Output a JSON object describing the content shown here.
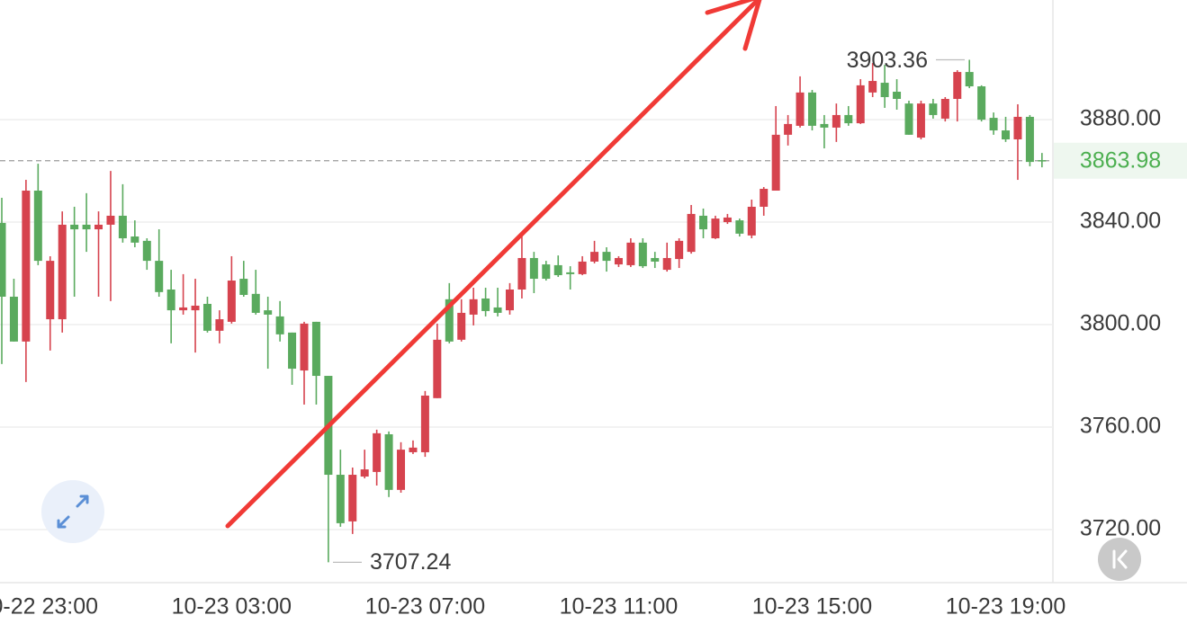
{
  "chart_data": {
    "type": "candlestick",
    "categories": [
      null,
      null,
      null,
      "10-22 23:00",
      null,
      null,
      null,
      null,
      null,
      null,
      null,
      null,
      null,
      null,
      null,
      null,
      null,
      null,
      null,
      "10-23 03:00",
      null,
      null,
      null,
      null,
      null,
      null,
      null,
      null,
      null,
      null,
      null,
      null,
      null,
      null,
      null,
      "10-23 07:00",
      null,
      null,
      null,
      null,
      null,
      null,
      null,
      null,
      null,
      null,
      null,
      null,
      null,
      null,
      null,
      "10-23 11:00",
      null,
      null,
      null,
      null,
      null,
      null,
      null,
      null,
      null,
      null,
      null,
      null,
      null,
      null,
      null,
      "10-23 15:00",
      null,
      null,
      null,
      null,
      null,
      null,
      null,
      null,
      null,
      null,
      null,
      null,
      null,
      null,
      null,
      "10-23 19:00",
      null,
      null,
      null
    ],
    "open": [
      3839.7,
      3810.9,
      3793.4,
      3852.3,
      3802.1,
      3802.1,
      3839.0,
      3839.0,
      3837.2,
      3839.0,
      3842.5,
      3834.4,
      3832.7,
      3824.9,
      3813.7,
      3805.6,
      3805.6,
      3808.1,
      3797.6,
      3801.1,
      3817.9,
      3812.0,
      3805.6,
      3803.2,
      3796.9,
      3782.1,
      3801.1,
      3780.0,
      3741.4,
      3723.2,
      3740.7,
      3742.5,
      3757.2,
      3735.5,
      3750.2,
      3750.2,
      3771.3,
      3809.9,
      3794.1,
      3803.9,
      3810.2,
      3806.7,
      3805.6,
      3813.7,
      3826.0,
      3823.5,
      3823.2,
      3820.4,
      3819.7,
      3824.6,
      3828.4,
      3823.5,
      3823.2,
      3832.0,
      3826.0,
      3821.4,
      3825.6,
      3828.4,
      3842.5,
      3833.7,
      3840.0,
      3840.7,
      3834.8,
      3846.0,
      3852.3,
      3874.1,
      3877.6,
      3890.6,
      3878.3,
      3876.9,
      3881.8,
      3878.6,
      3890.6,
      3894.4,
      3890.9,
      3886.3,
      3873.0,
      3886.3,
      3880.4,
      3888.1,
      3898.6,
      3893.0,
      3880.7,
      3875.8,
      3872.3,
      3881.1,
      3864.2
    ],
    "high": [
      3849.5,
      3817.9,
      3856.5,
      3862.8,
      3826.7,
      3844.2,
      3846.0,
      3851.3,
      3844.2,
      3860.0,
      3854.8,
      3840.7,
      3833.7,
      3837.2,
      3821.4,
      3819.7,
      3817.9,
      3810.9,
      3805.6,
      3826.7,
      3824.9,
      3821.4,
      3810.9,
      3809.2,
      3796.9,
      3801.1,
      3801.1,
      3780.0,
      3751.2,
      3744.2,
      3751.2,
      3759.0,
      3758.3,
      3754.1,
      3754.8,
      3774.1,
      3800.4,
      3816.2,
      3809.9,
      3814.4,
      3814.4,
      3814.4,
      3816.2,
      3835.5,
      3828.4,
      3824.9,
      3827.0,
      3822.8,
      3826.7,
      3832.7,
      3830.2,
      3826.7,
      3833.7,
      3833.7,
      3828.4,
      3832.0,
      3833.7,
      3846.7,
      3845.3,
      3842.5,
      3843.2,
      3841.4,
      3848.8,
      3853.7,
      3885.3,
      3881.8,
      3896.9,
      3891.6,
      3881.8,
      3886.3,
      3885.3,
      3895.8,
      3902.1,
      3901.4,
      3895.8,
      3887.4,
      3887.4,
      3888.1,
      3888.8,
      3899.3,
      3903.36,
      3893.4,
      3882.8,
      3881.1,
      3886.0,
      3881.8,
      3867.0
    ],
    "low": [
      3784.6,
      3793.4,
      3777.6,
      3823.2,
      3789.9,
      3796.9,
      3810.9,
      3828.4,
      3810.9,
      3809.2,
      3832.0,
      3830.2,
      3821.4,
      3810.9,
      3792.7,
      3803.9,
      3789.1,
      3796.9,
      3792.7,
      3800.4,
      3810.9,
      3803.9,
      3782.8,
      3793.4,
      3776.5,
      3768.8,
      3768.8,
      3707.24,
      3721.1,
      3718.3,
      3740.0,
      3737.2,
      3732.7,
      3734.4,
      3749.5,
      3748.4,
      3771.3,
      3792.7,
      3793.4,
      3799.7,
      3803.2,
      3803.2,
      3803.9,
      3810.2,
      3812.3,
      3817.2,
      3818.6,
      3813.7,
      3819.3,
      3823.9,
      3820.7,
      3822.5,
      3822.5,
      3822.1,
      3822.1,
      3820.7,
      3822.1,
      3827.7,
      3833.7,
      3833.4,
      3839.3,
      3834.4,
      3833.7,
      3842.5,
      3852.3,
      3869.9,
      3876.9,
      3875.8,
      3868.8,
      3871.3,
      3877.6,
      3878.3,
      3888.8,
      3884.6,
      3883.9,
      3874.1,
      3872.3,
      3880.4,
      3879.3,
      3879.3,
      3892.3,
      3879.3,
      3874.1,
      3871.3,
      3856.5,
      3861.8,
      3861.4
    ],
    "close": [
      3810.9,
      3793.4,
      3852.3,
      3824.9,
      3824.9,
      3839.0,
      3837.2,
      3837.2,
      3839.0,
      3842.5,
      3833.7,
      3832.0,
      3824.9,
      3812.7,
      3805.6,
      3806.7,
      3807.4,
      3797.6,
      3802.1,
      3817.2,
      3811.6,
      3804.6,
      3803.9,
      3796.2,
      3782.8,
      3800.4,
      3780.0,
      3741.4,
      3722.5,
      3741.4,
      3743.5,
      3757.6,
      3735.5,
      3751.2,
      3752.0,
      3772.3,
      3794.1,
      3793.4,
      3804.6,
      3809.9,
      3805.3,
      3804.6,
      3813.7,
      3826.0,
      3817.9,
      3817.9,
      3819.3,
      3819.7,
      3824.6,
      3828.4,
      3824.9,
      3826.0,
      3832.0,
      3822.8,
      3824.6,
      3826.0,
      3832.7,
      3843.2,
      3837.2,
      3841.4,
      3841.8,
      3835.5,
      3846.0,
      3853.0,
      3874.1,
      3878.3,
      3890.6,
      3877.6,
      3876.9,
      3881.8,
      3878.6,
      3893.4,
      3895.1,
      3888.8,
      3888.1,
      3874.1,
      3886.3,
      3881.8,
      3888.1,
      3898.6,
      3893.0,
      3880.0,
      3875.8,
      3872.3,
      3881.1,
      3863.5,
      3863.98
    ],
    "up_color": "#d6434e",
    "down_color": "#5aaa5e",
    "ylim": [
      3699.3,
      3926.7
    ],
    "yticks": [
      {
        "value": 3720,
        "label": "3720.00"
      },
      {
        "value": 3760,
        "label": "3760.00"
      },
      {
        "value": 3800,
        "label": "3800.00"
      },
      {
        "value": 3840,
        "label": "3840.00"
      },
      {
        "value": 3880,
        "label": "3880.00"
      }
    ],
    "grid": true,
    "max_marker": {
      "value": 3903.36,
      "label": "3903.36"
    },
    "min_marker": {
      "value": 3707.24,
      "label": "3707.24"
    },
    "last_price": {
      "value": 3863.98,
      "label": "3863.98"
    }
  }
}
